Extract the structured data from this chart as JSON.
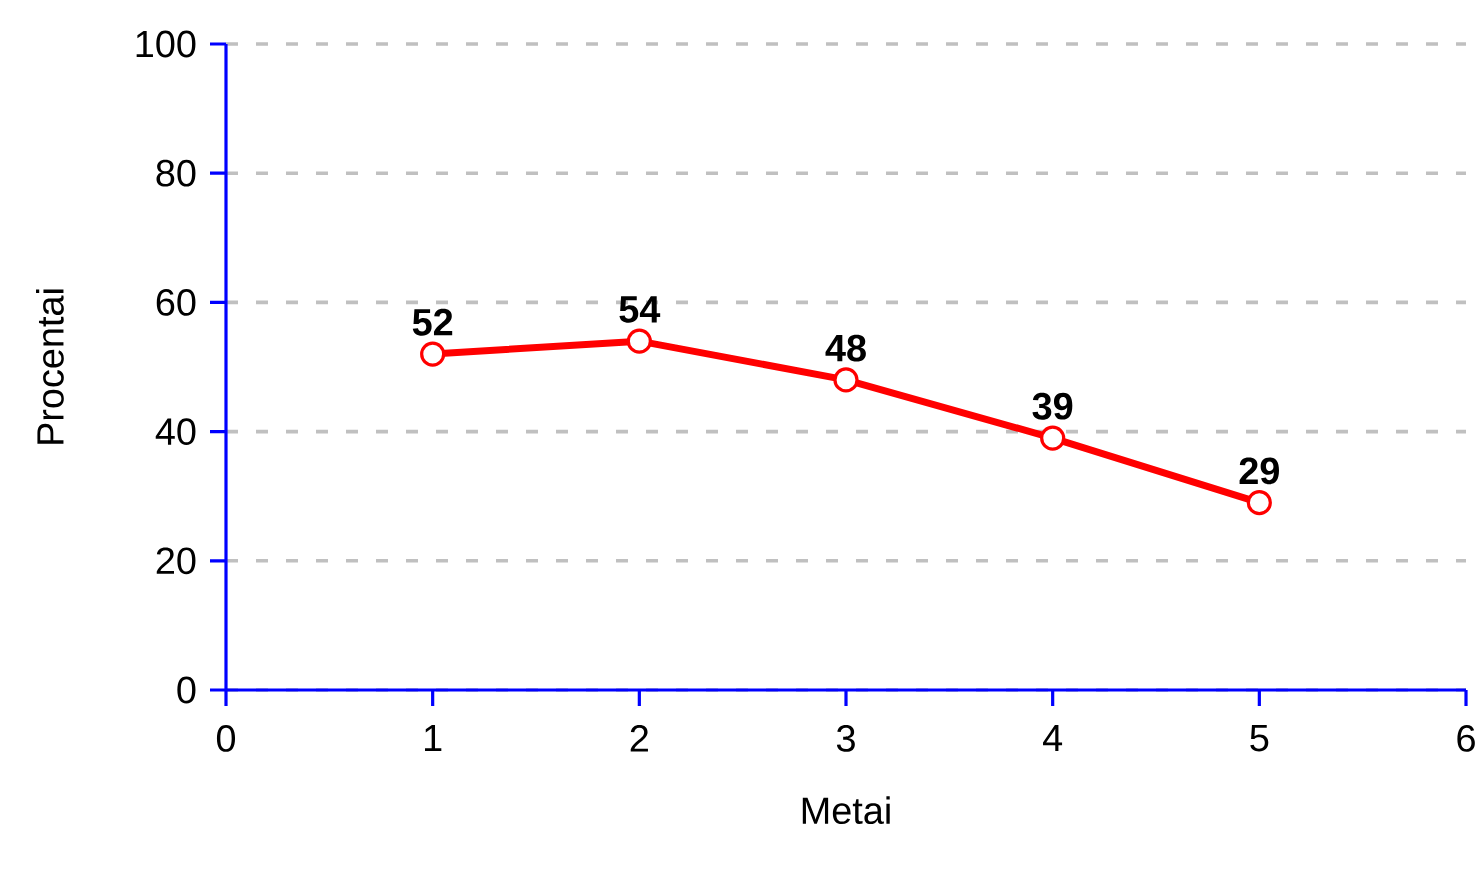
{
  "chart_data": {
    "type": "line",
    "xlabel": "Metai",
    "ylabel": "Procentai",
    "x": [
      1,
      2,
      3,
      4,
      5
    ],
    "values": [
      52,
      54,
      48,
      39,
      29
    ],
    "color": "#ff0000",
    "xlim": [
      0,
      6
    ],
    "ylim": [
      0,
      100
    ],
    "xticks": [
      0,
      1,
      2,
      3,
      4,
      5,
      6
    ],
    "yticks": [
      0,
      20,
      40,
      60,
      80,
      100
    ],
    "grid": "y",
    "marker": "circle",
    "line_style": "solid",
    "data_labels": true
  }
}
